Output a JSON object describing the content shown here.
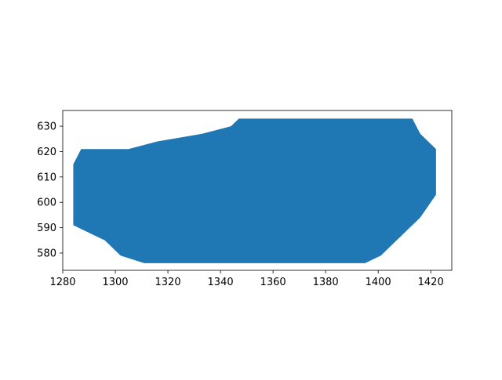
{
  "chart_data": {
    "type": "area",
    "title": "",
    "xlabel": "",
    "ylabel": "",
    "xlim": [
      1280,
      1428
    ],
    "ylim": [
      573.2,
      636.2
    ],
    "xticks": [
      1280,
      1300,
      1320,
      1340,
      1360,
      1380,
      1400,
      1420
    ],
    "yticks": [
      580,
      590,
      600,
      610,
      620,
      630
    ],
    "xtick_labels": [
      "1280",
      "1300",
      "1320",
      "1340",
      "1360",
      "1380",
      "1400",
      "1420"
    ],
    "ytick_labels": [
      "580",
      "590",
      "600",
      "610",
      "620",
      "630"
    ],
    "grid": false,
    "series": [
      {
        "fill": "#1f77b4",
        "points": [
          [
            1284,
            615
          ],
          [
            1287,
            621
          ],
          [
            1305,
            621
          ],
          [
            1316,
            624
          ],
          [
            1333,
            627
          ],
          [
            1344,
            630
          ],
          [
            1347,
            633
          ],
          [
            1413,
            633
          ],
          [
            1416,
            627
          ],
          [
            1422,
            621
          ],
          [
            1422,
            603
          ],
          [
            1416,
            594
          ],
          [
            1401,
            579
          ],
          [
            1395,
            576
          ],
          [
            1311,
            576
          ],
          [
            1302,
            579
          ],
          [
            1296,
            585
          ],
          [
            1284,
            591
          ]
        ]
      }
    ]
  }
}
